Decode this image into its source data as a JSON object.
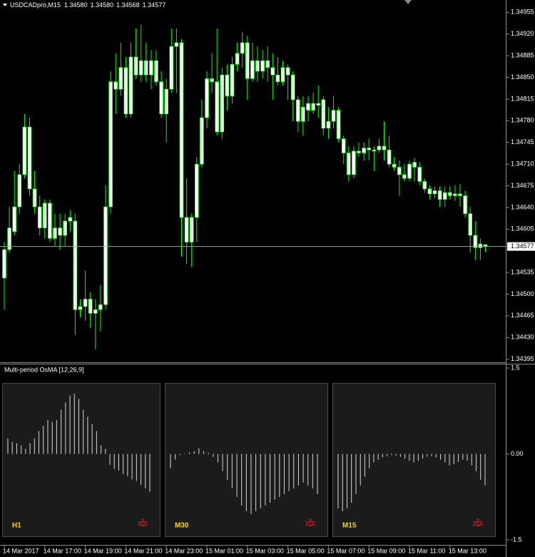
{
  "chart_data": [
    {
      "type": "candlestick",
      "title": "USDCADpro,M15",
      "quote": [
        "1.34580",
        "1.34580",
        "1.34568",
        "1.34577"
      ],
      "categories": [
        "14 Mar 2017",
        null,
        null,
        null,
        null,
        null,
        null,
        null,
        "14 Mar 17:00",
        null,
        null,
        null,
        null,
        null,
        null,
        null,
        "14 Mar 19:00",
        null,
        null,
        null,
        null,
        null,
        null,
        null,
        "14 Mar 21:00",
        null,
        null,
        null,
        null,
        null,
        null,
        null,
        "14 Mar 23:00",
        null,
        null,
        null,
        null,
        null,
        null,
        null,
        "15 Mar 01:00",
        null,
        null,
        null,
        null,
        null,
        null,
        null,
        "15 Mar 03:00",
        null,
        null,
        null,
        null,
        null,
        null,
        null,
        "15 Mar 05:00",
        null,
        null,
        null,
        null,
        null,
        null,
        null,
        "15 Mar 07:00",
        null,
        null,
        null,
        null,
        null,
        null,
        null,
        "15 Mar 09:00",
        null,
        null,
        null,
        null,
        null,
        null,
        null,
        "15 Mar 11:00",
        null,
        null,
        null,
        null,
        null,
        null,
        null,
        "15 Mar 13:00",
        null,
        null,
        null,
        null,
        null,
        null,
        null
      ],
      "open": [
        1.34526,
        1.34572,
        1.34601,
        1.34641,
        1.34693,
        1.3477,
        1.3467,
        1.34641,
        1.34607,
        1.34647,
        1.3459,
        1.34607,
        1.34595,
        1.34618,
        1.34618,
        1.34475,
        1.3448,
        1.34492,
        1.34469,
        1.34475,
        1.34483,
        1.34641,
        1.34843,
        1.34831,
        1.34866,
        1.34791,
        1.34883,
        1.34854,
        1.34877,
        1.34854,
        1.34877,
        1.34843,
        1.34791,
        1.34831,
        1.349,
        1.34906,
        1.34624,
        1.34584,
        1.34624,
        1.3471,
        1.34785,
        1.34848,
        1.34843,
        1.34762,
        1.34854,
        1.3482,
        1.34871,
        1.34889,
        1.34906,
        1.34848,
        1.34877,
        1.3486,
        1.34877,
        1.34866,
        1.34854,
        1.34843,
        1.34866,
        1.34854,
        1.34814,
        1.34779,
        1.34808,
        1.34797,
        1.34808,
        1.34814,
        1.34768,
        1.34779,
        1.34797,
        1.34751,
        1.34728,
        1.34693,
        1.34731,
        1.34728,
        1.34736,
        1.34733,
        1.34733,
        1.34739,
        1.34733,
        1.3471,
        1.34705,
        1.34693,
        1.34687,
        1.34713,
        1.34705,
        1.34682,
        1.3467,
        1.34662,
        1.34667,
        1.34653,
        1.34664,
        1.34659,
        1.34662,
        1.34659,
        1.3463,
        1.34595,
        1.34575,
        1.3458
      ],
      "high": [
        1.34584,
        1.34641,
        1.34699,
        1.3471,
        1.34791,
        1.34785,
        1.34699,
        1.34659,
        1.34653,
        1.34653,
        1.3463,
        1.3463,
        1.3463,
        1.34636,
        1.3463,
        1.34492,
        1.34538,
        1.34503,
        1.34492,
        1.34515,
        1.34676,
        1.3486,
        1.34889,
        1.34906,
        1.34883,
        1.34906,
        1.34929,
        1.34935,
        1.34906,
        1.34894,
        1.34894,
        1.3486,
        1.34848,
        1.34929,
        1.34929,
        1.34912,
        1.34687,
        1.3463,
        1.34722,
        1.34814,
        1.3486,
        1.34889,
        1.34929,
        1.34866,
        1.34871,
        1.34883,
        1.34906,
        1.34923,
        1.34917,
        1.34906,
        1.349,
        1.34894,
        1.349,
        1.34889,
        1.34883,
        1.34877,
        1.34871,
        1.3486,
        1.3482,
        1.3482,
        1.3482,
        1.34825,
        1.34837,
        1.3482,
        1.34802,
        1.3482,
        1.34802,
        1.34756,
        1.34739,
        1.34739,
        1.34745,
        1.34745,
        1.34751,
        1.34739,
        1.34751,
        1.34779,
        1.34756,
        1.34722,
        1.34716,
        1.3471,
        1.34716,
        1.3472,
        1.34713,
        1.34687,
        1.34676,
        1.34674,
        1.34674,
        1.34674,
        1.34674,
        1.34676,
        1.34678,
        1.34667,
        1.34641,
        1.34618,
        1.3459,
        1.3458
      ],
      "low": [
        1.34475,
        1.34567,
        1.34595,
        1.3463,
        1.34687,
        1.34659,
        1.3463,
        1.34595,
        1.3459,
        1.34584,
        1.34578,
        1.34572,
        1.34578,
        1.34601,
        1.34434,
        1.34463,
        1.34457,
        1.34446,
        1.34411,
        1.3444,
        1.34475,
        1.3463,
        1.34791,
        1.3482,
        1.34785,
        1.34785,
        1.34848,
        1.34843,
        1.34843,
        1.34831,
        1.34837,
        1.34785,
        1.34745,
        1.34825,
        1.34825,
        1.34561,
        1.34549,
        1.34544,
        1.34584,
        1.34705,
        1.34768,
        1.34825,
        1.34756,
        1.34751,
        1.34797,
        1.34808,
        1.3486,
        1.34866,
        1.34814,
        1.34843,
        1.34843,
        1.34848,
        1.34843,
        1.34814,
        1.34837,
        1.34837,
        1.34814,
        1.34779,
        1.34762,
        1.34756,
        1.34779,
        1.34791,
        1.34785,
        1.34756,
        1.34751,
        1.34768,
        1.34745,
        1.3471,
        1.34682,
        1.34687,
        1.34722,
        1.34716,
        1.34716,
        1.34699,
        1.34728,
        1.34716,
        1.34705,
        1.34699,
        1.34659,
        1.34682,
        1.34682,
        1.34682,
        1.34676,
        1.34664,
        1.34653,
        1.34655,
        1.34641,
        1.34641,
        1.34653,
        1.34651,
        1.34641,
        1.34624,
        1.34567,
        1.34555,
        1.34555,
        1.34568
      ],
      "close": [
        1.34572,
        1.34607,
        1.34641,
        1.34693,
        1.3477,
        1.3467,
        1.34641,
        1.34607,
        1.34647,
        1.3459,
        1.34607,
        1.34595,
        1.34618,
        1.34624,
        1.34475,
        1.3448,
        1.34492,
        1.34469,
        1.34475,
        1.34483,
        1.34641,
        1.34843,
        1.34831,
        1.34866,
        1.34791,
        1.34883,
        1.34854,
        1.34877,
        1.34854,
        1.34877,
        1.34843,
        1.34791,
        1.34831,
        1.349,
        1.34906,
        1.34624,
        1.34584,
        1.34624,
        1.3471,
        1.34785,
        1.34848,
        1.34843,
        1.34762,
        1.34854,
        1.3482,
        1.34871,
        1.34889,
        1.34906,
        1.34848,
        1.34877,
        1.3486,
        1.34877,
        1.34866,
        1.34854,
        1.34843,
        1.34866,
        1.34854,
        1.34814,
        1.34779,
        1.34802,
        1.34797,
        1.34808,
        1.34805,
        1.34768,
        1.34779,
        1.34797,
        1.34751,
        1.34728,
        1.34693,
        1.34731,
        1.34728,
        1.34736,
        1.34733,
        1.34731,
        1.34739,
        1.34733,
        1.3471,
        1.34705,
        1.34693,
        1.34687,
        1.3471,
        1.34705,
        1.34682,
        1.3467,
        1.34662,
        1.34667,
        1.34653,
        1.34664,
        1.34659,
        1.34662,
        1.34659,
        1.3463,
        1.34595,
        1.34575,
        1.34581,
        1.34577
      ],
      "ylim": [
        1.3439,
        1.34975
      ],
      "yticks": [
        1.34955,
        {
          "value": 1.3492,
          "label": "1.34920"
        },
        1.34885,
        {
          "value": 1.3485,
          "label": "1.34850"
        },
        1.34815,
        {
          "value": 1.3478,
          "label": "1.34780"
        },
        1.34745,
        {
          "value": 1.3471,
          "label": "1.34710"
        },
        1.34675,
        {
          "value": 1.3464,
          "label": "1.34640"
        },
        1.34605,
        1.34535,
        {
          "value": 1.345,
          "label": "1.34500"
        },
        1.34465,
        {
          "value": 1.3443,
          "label": "1.34430"
        },
        1.34395
      ],
      "wick_color": "#00ff00",
      "body_color": "#f0fff0"
    },
    {
      "type": "histogram-panels",
      "title": "Multi-period OsMA [12,26,9]",
      "ylim": [
        -1.6,
        1.575
      ],
      "yticks": [
        1.5,
        {
          "value": 0,
          "label": "0.00"
        },
        -1.5
      ],
      "color": "#d8d8d8",
      "panels": [
        {
          "name": "H1",
          "values": [
            0.27,
            0.21,
            0.19,
            0.15,
            0.09,
            0.19,
            0.27,
            0.4,
            0.49,
            0.59,
            0.56,
            0.59,
            0.77,
            0.9,
            1.02,
            1.05,
            0.96,
            0.77,
            0.65,
            0.52,
            0.4,
            0.15,
            0.09,
            -0.19,
            -0.26,
            -0.29,
            -0.35,
            -0.39,
            -0.44,
            -0.47,
            -0.54,
            -0.6,
            -0.66
          ]
        },
        {
          "name": "M30",
          "values": [
            -0.25,
            -0.1,
            -0.02,
            0.01,
            0.03,
            0.05,
            0.1,
            0.05,
            0.02,
            -0.05,
            -0.15,
            -0.3,
            -0.45,
            -0.6,
            -0.75,
            -0.9,
            -1.0,
            -1.05,
            -1.0,
            -0.95,
            -0.9,
            -0.85,
            -0.8,
            -0.75,
            -0.7,
            -0.65,
            -0.6,
            -0.55,
            -0.5,
            -0.55,
            -0.6,
            -0.7
          ]
        },
        {
          "name": "M15",
          "values": [
            -0.95,
            -1.0,
            -0.95,
            -0.85,
            -0.7,
            -0.55,
            -0.4,
            -0.25,
            -0.15,
            -0.1,
            -0.06,
            -0.04,
            -0.02,
            -0.03,
            -0.05,
            -0.08,
            -0.12,
            -0.15,
            -0.12,
            -0.08,
            -0.05,
            -0.04,
            -0.06,
            -0.1,
            -0.15,
            -0.2,
            -0.18,
            -0.14,
            -0.1,
            -0.12,
            -0.2,
            -0.3,
            -0.45,
            -0.55
          ]
        }
      ]
    }
  ]
}
